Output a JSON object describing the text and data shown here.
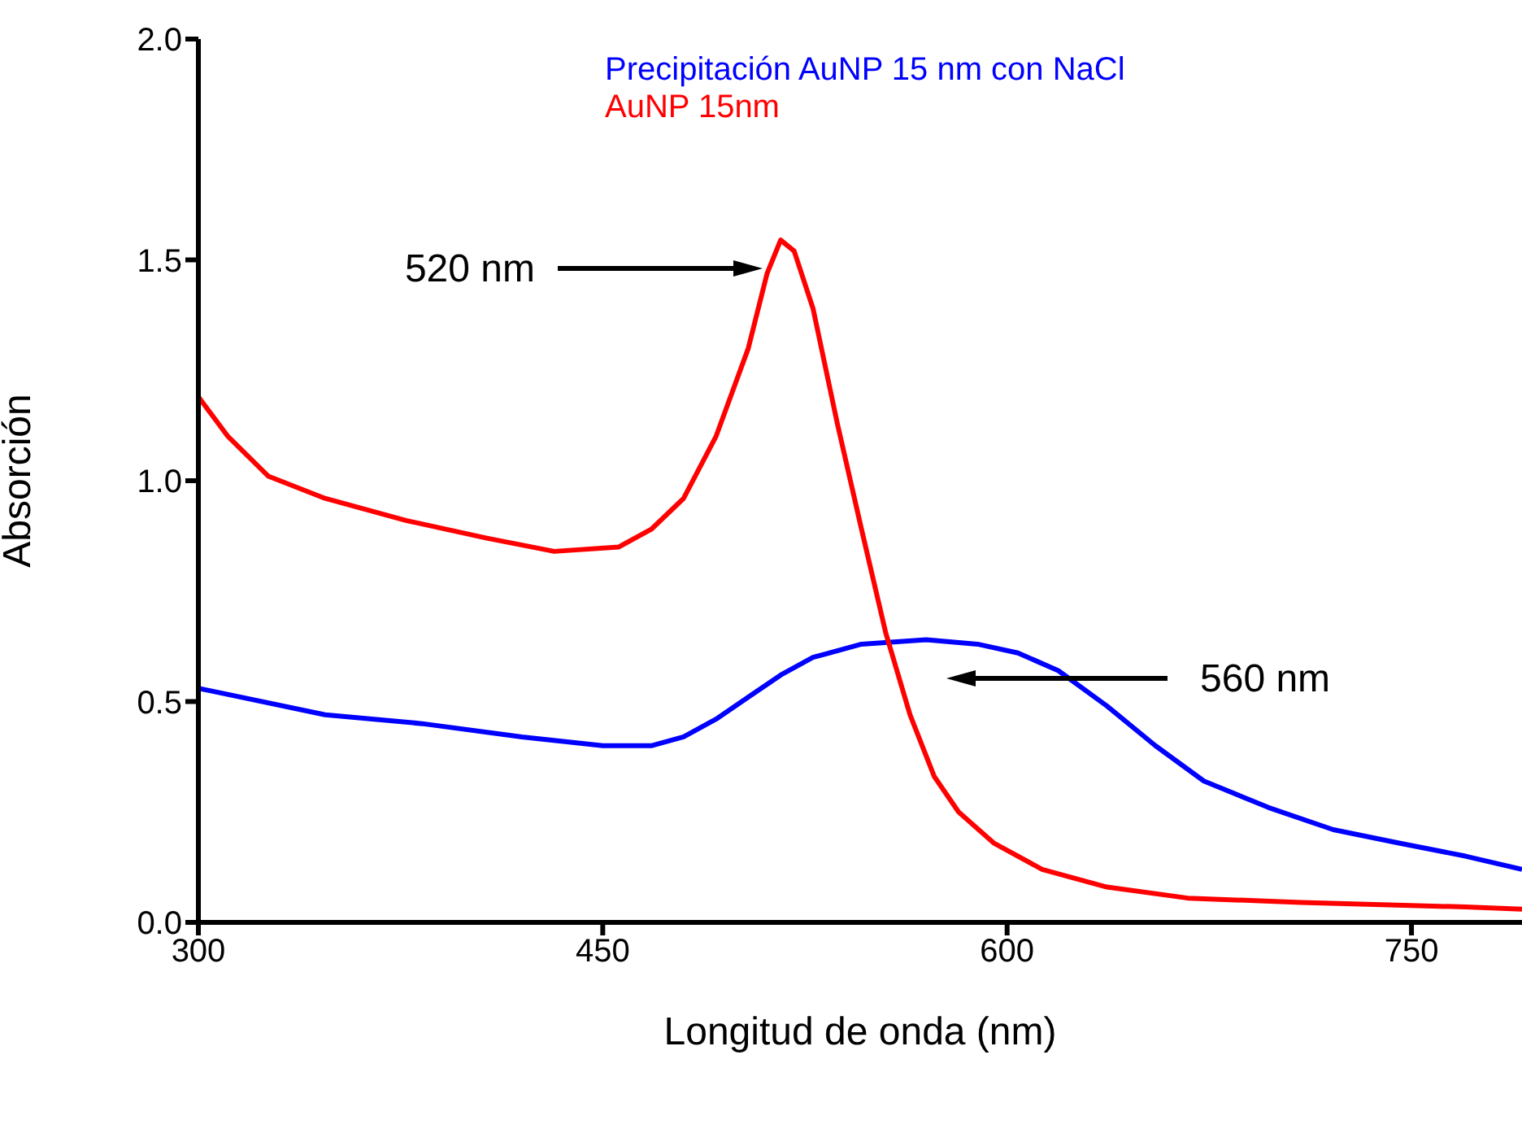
{
  "chart_data": {
    "type": "line",
    "xlabel": "Longitud de onda (nm)",
    "ylabel": "Absorción",
    "xlim": [
      300,
      791
    ],
    "xticks": [
      300,
      450,
      600,
      750
    ],
    "ylim": [
      0,
      2
    ],
    "yticks": [
      {
        "value": 0,
        "label": "0.0"
      },
      0.5,
      {
        "value": 1,
        "label": "1.0"
      },
      1.5,
      {
        "value": 2,
        "label": "2.0"
      }
    ],
    "legend": "top right",
    "marker": "none",
    "line_style": "solid",
    "annotations": [
      "520 nm",
      "560 nm"
    ],
    "series": [
      {
        "name": "Precipitación AuNP 15 nm con NaCl",
        "color": "#0000ff",
        "x": [
          300,
          347,
          383,
          420,
          450,
          468,
          480,
          492,
          504,
          516,
          528,
          546,
          570,
          589,
          604,
          619,
          637,
          655,
          673,
          697,
          721,
          745,
          770,
          791
        ],
        "values": [
          0.53,
          0.47,
          0.45,
          0.42,
          0.4,
          0.4,
          0.42,
          0.46,
          0.51,
          0.56,
          0.6,
          0.63,
          0.64,
          0.63,
          0.61,
          0.57,
          0.49,
          0.4,
          0.32,
          0.26,
          0.21,
          0.18,
          0.15,
          0.12
        ]
      },
      {
        "name": "AuNP 15nm",
        "color": "#ff0000",
        "x": [
          300,
          311,
          326,
          347,
          377,
          407,
          432,
          456,
          468,
          480,
          492,
          504,
          511,
          516,
          521,
          528,
          537,
          546,
          555,
          564,
          573,
          582,
          595,
          613,
          637,
          667,
          709,
          739,
          770,
          791
        ],
        "values": [
          1.19,
          1.1,
          1.01,
          0.96,
          0.91,
          0.87,
          0.84,
          0.85,
          0.89,
          0.96,
          1.1,
          1.3,
          1.47,
          1.545,
          1.52,
          1.39,
          1.13,
          0.89,
          0.655,
          0.47,
          0.33,
          0.25,
          0.18,
          0.12,
          0.08,
          0.055,
          0.045,
          0.04,
          0.035,
          0.03
        ]
      }
    ]
  }
}
